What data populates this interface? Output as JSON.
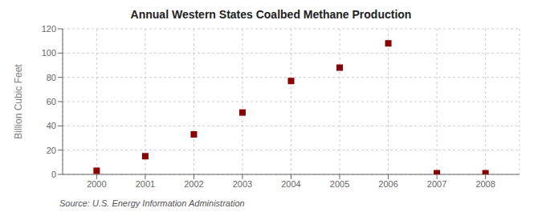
{
  "chart_data": {
    "type": "scatter",
    "title": "Annual Western States Coalbed Methane Production",
    "ylabel": "Billion Cubic Feet",
    "annotation": "Source: U.S. Energy Information Administration",
    "x": [
      2000,
      2001,
      2002,
      2003,
      2004,
      2005,
      2006,
      2007,
      2008
    ],
    "values": [
      3,
      15,
      33,
      51,
      77,
      88,
      108,
      1,
      1
    ],
    "color": "#8B0000",
    "marker": "square",
    "xlim": [
      1999.3,
      2008.7
    ],
    "ylim": [
      0,
      120
    ],
    "xticks": [
      2000,
      2001,
      2002,
      2003,
      2004,
      2005,
      2006,
      2007,
      2008
    ],
    "yticks": [
      0,
      20,
      40,
      60,
      80,
      100,
      120
    ],
    "grid": true
  }
}
